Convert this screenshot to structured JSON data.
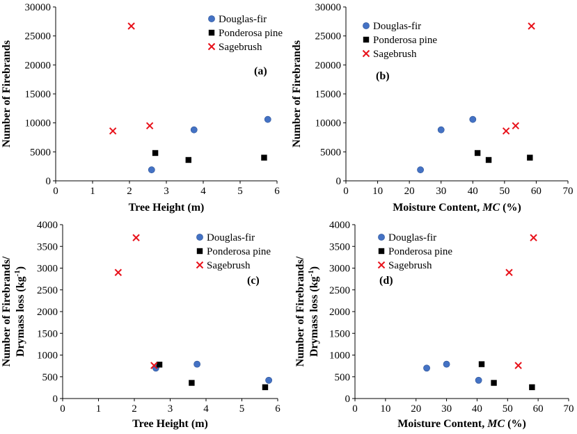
{
  "colors": {
    "douglas_fir": "#4472C4",
    "ponderosa_pine": "#000000",
    "sagebrush": "#E8121B"
  },
  "chart_data": [
    {
      "type": "scatter",
      "panel": "(a)",
      "xlabel": "Tree Height (m)",
      "ylabel": [
        "Number of Firebrands"
      ],
      "xlim": [
        0,
        6
      ],
      "ylim": [
        0,
        30000
      ],
      "xticks": [
        "0",
        "1",
        "2",
        "3",
        "4",
        "5",
        "6"
      ],
      "yticks": [
        "0",
        "5000",
        "10000",
        "15000",
        "20000",
        "25000",
        "30000"
      ],
      "legend": "top-right",
      "series": [
        {
          "name": "Douglas-fir",
          "marker": "circle",
          "color": "#4472C4",
          "points": [
            [
              2.6,
              1900
            ],
            [
              3.75,
              8800
            ],
            [
              5.75,
              10600
            ]
          ]
        },
        {
          "name": "Ponderosa pine",
          "marker": "square",
          "color": "#000000",
          "points": [
            [
              2.7,
              4800
            ],
            [
              3.6,
              3600
            ],
            [
              5.65,
              4000
            ]
          ]
        },
        {
          "name": "Sagebrush",
          "marker": "x",
          "color": "#E8121B",
          "points": [
            [
              1.55,
              8600
            ],
            [
              2.05,
              26700
            ],
            [
              2.55,
              9500
            ]
          ]
        }
      ]
    },
    {
      "type": "scatter",
      "panel": "(b)",
      "xlabel": "Moisture Content, MC (%)",
      "ylabel": [
        "Number of Firebrands"
      ],
      "xlim": [
        0,
        70
      ],
      "ylim": [
        0,
        30000
      ],
      "xticks": [
        "0",
        "10",
        "20",
        "30",
        "40",
        "50",
        "60",
        "70"
      ],
      "yticks": [
        "0",
        "5000",
        "10000",
        "15000",
        "20000",
        "25000",
        "30000"
      ],
      "legend": "top-left",
      "series": [
        {
          "name": "Douglas-fir",
          "marker": "circle",
          "color": "#4472C4",
          "points": [
            [
              23.5,
              1900
            ],
            [
              30,
              8800
            ],
            [
              40,
              10600
            ]
          ]
        },
        {
          "name": "Ponderosa pine",
          "marker": "square",
          "color": "#000000",
          "points": [
            [
              41.5,
              4800
            ],
            [
              45,
              3600
            ],
            [
              58,
              4000
            ]
          ]
        },
        {
          "name": "Sagebrush",
          "marker": "x",
          "color": "#E8121B",
          "points": [
            [
              50.5,
              8600
            ],
            [
              53.5,
              9500
            ],
            [
              58.5,
              26700
            ]
          ]
        }
      ]
    },
    {
      "type": "scatter",
      "panel": "(c)",
      "xlabel": "Tree Height (m)",
      "ylabel": [
        "Number of Firebrands/",
        "Drymass loss (kg-1)"
      ],
      "xlim": [
        0,
        6
      ],
      "ylim": [
        0,
        4000
      ],
      "xticks": [
        "0",
        "1",
        "2",
        "3",
        "4",
        "5",
        "6"
      ],
      "yticks": [
        "0",
        "500",
        "1000",
        "1500",
        "2000",
        "2500",
        "3000",
        "3500",
        "4000"
      ],
      "legend": "top-right",
      "series": [
        {
          "name": "Douglas-fir",
          "marker": "circle",
          "color": "#4472C4",
          "points": [
            [
              2.6,
              700
            ],
            [
              3.75,
              790
            ],
            [
              5.75,
              420
            ]
          ]
        },
        {
          "name": "Ponderosa pine",
          "marker": "square",
          "color": "#000000",
          "points": [
            [
              2.7,
              780
            ],
            [
              3.6,
              360
            ],
            [
              5.65,
              260
            ]
          ]
        },
        {
          "name": "Sagebrush",
          "marker": "x",
          "color": "#E8121B",
          "points": [
            [
              1.55,
              2900
            ],
            [
              2.05,
              3700
            ],
            [
              2.55,
              760
            ]
          ]
        }
      ]
    },
    {
      "type": "scatter",
      "panel": "(d)",
      "xlabel": "Moisture Content, MC (%)",
      "ylabel": [
        "Number of Firebrands/",
        "Drymass loss (kg-1)"
      ],
      "xlim": [
        0,
        70
      ],
      "ylim": [
        0,
        4000
      ],
      "xticks": [
        "0",
        "10",
        "20",
        "30",
        "40",
        "50",
        "60",
        "70"
      ],
      "yticks": [
        "0",
        "500",
        "1000",
        "1500",
        "2000",
        "2500",
        "3000",
        "3500",
        "4000"
      ],
      "legend": "top-left",
      "series": [
        {
          "name": "Douglas-fir",
          "marker": "circle",
          "color": "#4472C4",
          "points": [
            [
              23.5,
              700
            ],
            [
              30,
              790
            ],
            [
              40.5,
              420
            ]
          ]
        },
        {
          "name": "Ponderosa pine",
          "marker": "square",
          "color": "#000000",
          "points": [
            [
              41.5,
              790
            ],
            [
              45.5,
              360
            ],
            [
              58,
              260
            ]
          ]
        },
        {
          "name": "Sagebrush",
          "marker": "x",
          "color": "#E8121B",
          "points": [
            [
              50.5,
              2900
            ],
            [
              53.5,
              760
            ],
            [
              58.5,
              3700
            ]
          ]
        }
      ]
    }
  ]
}
